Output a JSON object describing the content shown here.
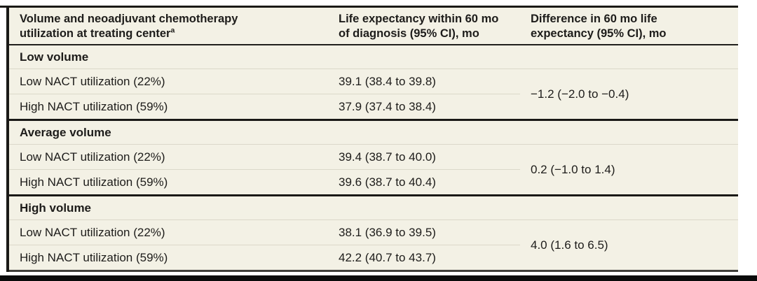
{
  "figure": {
    "columns": [
      {
        "line1": "Volume and neoadjuvant chemotherapy",
        "line2": "utilization at treating center",
        "footnote_marker": "a"
      },
      {
        "line1": "Life expectancy within 60 mo",
        "line2": "of diagnosis (95% CI), mo"
      },
      {
        "line1": "Difference in 60 mo life",
        "line2": "expectancy (95% CI), mo"
      }
    ],
    "sections": [
      {
        "label": "Low volume",
        "rows": [
          {
            "label": "Low NACT utilization (22%)",
            "life_expectancy": "39.1 (38.4 to 39.8)"
          },
          {
            "label": "High NACT utilization (59%)",
            "life_expectancy": "37.9 (37.4 to 38.4)"
          }
        ],
        "difference": "−1.2 (−2.0 to −0.4)"
      },
      {
        "label": "Average volume",
        "rows": [
          {
            "label": "Low NACT utilization (22%)",
            "life_expectancy": "39.4 (38.7 to 40.0)"
          },
          {
            "label": "High NACT utilization (59%)",
            "life_expectancy": "39.6 (38.7 to 40.4)"
          }
        ],
        "difference": "0.2 (−1.0 to 1.4)"
      },
      {
        "label": "High volume",
        "rows": [
          {
            "label": "Low NACT utilization (22%)",
            "life_expectancy": "38.1 (36.9 to 39.5)"
          },
          {
            "label": "High NACT utilization (59%)",
            "life_expectancy": "42.2 (40.7 to 43.7)"
          }
        ],
        "difference": "4.0 (1.6 to 6.5)"
      }
    ],
    "colors": {
      "table_background": "#f3f1e5",
      "rule_dark": "#1a1916",
      "row_separator": "#dbd8c9",
      "bottom_rule": "#3f3e39",
      "text": "#1d1c1a"
    }
  }
}
